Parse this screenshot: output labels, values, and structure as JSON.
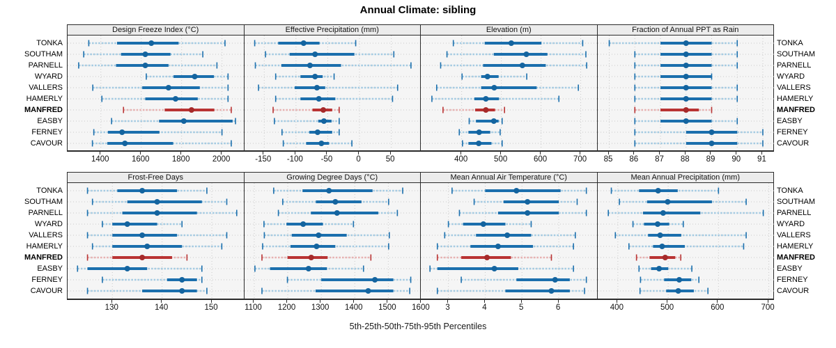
{
  "chart_data": {
    "type": "dot-whisker-trellis",
    "title": "Annual Climate: sibling",
    "caption": "5th-25th-50th-75th-95th Percentiles",
    "percentiles": [
      5,
      25,
      50,
      75,
      95
    ],
    "stations": [
      "TONKA",
      "SOUTHAM",
      "PARNELL",
      "WYARD",
      "VALLERS",
      "HAMERLY",
      "MANFRED",
      "EASBY",
      "FERNEY",
      "CAVOUR"
    ],
    "highlight_station": "MANFRED",
    "colors": {
      "normal": "#1b6fad",
      "normal_light": "#a5cbe2",
      "normal_dot": "#14649f",
      "highlight": "#b93333",
      "highlight_light": "#e7b2b2",
      "highlight_dot": "#a62a2a",
      "panel_bg": "#f5f5f5",
      "strip_bg": "#ececec",
      "gridline": "#c9c9c9",
      "border": "#2b2b2b"
    },
    "layout": {
      "rows": 2,
      "cols": 4,
      "grid": "dotted",
      "legend": "none",
      "labels_both_sides": true
    },
    "panels": [
      {
        "title": "Design Freeze Index (°C)",
        "row": 0,
        "col": 0,
        "ticks": [
          1400,
          1600,
          1800,
          2000
        ],
        "xlim": [
          1235,
          2110
        ],
        "values": {
          "TONKA": [
            1340,
            1480,
            1650,
            1785,
            2015
          ],
          "SOUTHAM": [
            1315,
            1500,
            1620,
            1745,
            1905
          ],
          "PARNELL": [
            1290,
            1475,
            1620,
            1735,
            1975
          ],
          "WYARD": [
            1625,
            1760,
            1865,
            1960,
            2030
          ],
          "VALLERS": [
            1360,
            1605,
            1735,
            1890,
            2030
          ],
          "HAMERLY": [
            1405,
            1620,
            1770,
            1880,
            2030
          ],
          "MANFRED": [
            1512,
            1716,
            1849,
            1962,
            2046
          ],
          "EASBY": [
            1453,
            1688,
            1811,
            2053,
            2067
          ],
          "FERNEY": [
            1365,
            1435,
            1505,
            1690,
            2000
          ],
          "CAVOUR": [
            1358,
            1432,
            1519,
            1758,
            2046
          ]
        }
      },
      {
        "title": "Effective Precipitation (mm)",
        "row": 0,
        "col": 1,
        "ticks": [
          -150,
          -100,
          -50,
          0,
          50
        ],
        "xlim": [
          -181,
          97
        ],
        "values": {
          "TONKA": [
            -165,
            -128,
            -88,
            -63,
            -6
          ],
          "SOUTHAM": [
            -148,
            -110,
            -70,
            -8,
            54
          ],
          "PARNELL": [
            -164,
            -123,
            -78,
            -29,
            81
          ],
          "WYARD": [
            -132,
            -93,
            -70,
            -58,
            -40
          ],
          "VALLERS": [
            -159,
            -102,
            -67,
            -54,
            60
          ],
          "HAMERLY": [
            -132,
            -93,
            -64,
            -38,
            52
          ],
          "MANFRED": [
            -136,
            -74,
            -57,
            -43,
            -32
          ],
          "EASBY": [
            -134,
            -65,
            -56,
            -44,
            -32
          ],
          "FERNEY": [
            -122,
            -79,
            -66,
            -43,
            -32
          ],
          "CAVOUR": [
            -120,
            -84,
            -60,
            -48,
            -12
          ]
        }
      },
      {
        "title": "Elevation (m)",
        "row": 0,
        "col": 2,
        "ticks": [
          400,
          500,
          600,
          700
        ],
        "xlim": [
          297,
          742
        ],
        "values": {
          "TONKA": [
            379,
            458,
            525,
            601,
            705
          ],
          "SOUTHAM": [
            363,
            481,
            563,
            616,
            713
          ],
          "PARNELL": [
            347,
            454,
            553,
            612,
            715
          ],
          "WYARD": [
            401,
            449,
            465,
            493,
            564
          ],
          "VALLERS": [
            337,
            449,
            482,
            589,
            694
          ],
          "HAMERLY": [
            325,
            432,
            461,
            494,
            645
          ],
          "MANFRED": [
            353,
            434,
            461,
            484,
            508
          ],
          "EASBY": [
            419,
            436,
            481,
            493,
            502
          ],
          "FERNEY": [
            394,
            417,
            444,
            472,
            497
          ],
          "CAVOUR": [
            402,
            417,
            443,
            475,
            502
          ]
        }
      },
      {
        "title": "Fraction of Annual PPT as Rain",
        "row": 0,
        "col": 3,
        "ticks": [
          85,
          86,
          87,
          88,
          89,
          90,
          91
        ],
        "xlim": [
          84.55,
          91.45
        ],
        "values": {
          "TONKA": [
            85,
            87,
            88,
            89,
            90
          ],
          "SOUTHAM": [
            86,
            87,
            88,
            89,
            90
          ],
          "PARNELL": [
            86,
            87,
            88,
            89,
            90
          ],
          "WYARD": [
            86,
            87,
            88,
            89,
            89
          ],
          "VALLERS": [
            86,
            87,
            88,
            89,
            90
          ],
          "HAMERLY": [
            86,
            87,
            88,
            89,
            90
          ],
          "MANFRED": [
            86,
            87,
            88,
            88.5,
            89
          ],
          "EASBY": [
            86,
            87,
            88,
            89,
            90
          ],
          "FERNEY": [
            86,
            88,
            89,
            90,
            91
          ],
          "CAVOUR": [
            86,
            88,
            89,
            90,
            91
          ]
        }
      },
      {
        "title": "Frost-Free Days",
        "row": 1,
        "col": 0,
        "ticks": [
          130,
          140,
          150
        ],
        "xlim": [
          121,
          156.5
        ],
        "values": {
          "TONKA": [
            125,
            131,
            136,
            143,
            149
          ],
          "SOUTHAM": [
            126,
            133,
            139,
            148,
            153
          ],
          "PARNELL": [
            125,
            132,
            139,
            147,
            155
          ],
          "WYARD": [
            128,
            130,
            133,
            139,
            144
          ],
          "VALLERS": [
            125,
            130,
            136,
            143,
            153
          ],
          "HAMERLY": [
            126,
            130,
            137,
            144,
            152
          ],
          "MANFRED": [
            125,
            130,
            136,
            142,
            145
          ],
          "EASBY": [
            123,
            125,
            133,
            137,
            148
          ],
          "FERNEY": [
            128,
            141,
            144,
            147,
            148
          ],
          "CAVOUR": [
            125,
            136,
            144,
            147,
            149
          ]
        }
      },
      {
        "title": "Growing Degree Days (°C)",
        "row": 1,
        "col": 1,
        "ticks": [
          1100,
          1200,
          1300,
          1400,
          1500,
          1600
        ],
        "xlim": [
          1071,
          1598
        ],
        "values": {
          "TONKA": [
            1158,
            1244,
            1323,
            1453,
            1543
          ],
          "SOUTHAM": [
            1185,
            1284,
            1342,
            1420,
            1501
          ],
          "PARNELL": [
            1172,
            1269,
            1347,
            1470,
            1527
          ],
          "WYARD": [
            1129,
            1196,
            1246,
            1305,
            1396
          ],
          "VALLERS": [
            1130,
            1212,
            1292,
            1376,
            1503
          ],
          "HAMERLY": [
            1125,
            1208,
            1286,
            1342,
            1501
          ],
          "MANFRED": [
            1123,
            1199,
            1270,
            1319,
            1448
          ],
          "EASBY": [
            1102,
            1147,
            1262,
            1317,
            1426
          ],
          "FERNEY": [
            1199,
            1300,
            1460,
            1515,
            1567
          ],
          "CAVOUR": [
            1123,
            1283,
            1440,
            1515,
            1564
          ]
        }
      },
      {
        "title": "Mean Annual Air Temperature (°C)",
        "row": 1,
        "col": 2,
        "ticks": [
          3,
          4,
          5,
          6
        ],
        "xlim": [
          2.25,
          7.05
        ],
        "values": {
          "TONKA": [
            3.1,
            4.0,
            4.85,
            6.05,
            6.75
          ],
          "SOUTHAM": [
            3.7,
            4.5,
            5.15,
            6.0,
            6.5
          ],
          "PARNELL": [
            3.3,
            4.35,
            5.15,
            6.0,
            6.75
          ],
          "WYARD": [
            3.0,
            3.4,
            3.95,
            4.55,
            5.25
          ],
          "VALLERS": [
            2.9,
            3.75,
            4.6,
            5.25,
            6.45
          ],
          "HAMERLY": [
            2.7,
            3.6,
            4.35,
            5.3,
            6.4
          ],
          "MANFRED": [
            2.7,
            3.35,
            4.05,
            4.7,
            5.8
          ],
          "EASBY": [
            2.5,
            2.7,
            4.25,
            4.9,
            6.4
          ],
          "FERNEY": [
            3.35,
            4.85,
            5.9,
            6.3,
            6.75
          ],
          "CAVOUR": [
            2.7,
            4.55,
            5.8,
            6.3,
            6.7
          ]
        }
      },
      {
        "title": "Mean Annual Precipitation (mm)",
        "row": 1,
        "col": 3,
        "ticks": [
          400,
          500,
          600,
          700
        ],
        "xlim": [
          360,
          711
        ],
        "values": {
          "TONKA": [
            387,
            442,
            480,
            519,
            600
          ],
          "SOUTHAM": [
            403,
            458,
            499,
            587,
            655
          ],
          "PARNELL": [
            381,
            450,
            490,
            564,
            689
          ],
          "WYARD": [
            430,
            452,
            479,
            502,
            530
          ],
          "VALLERS": [
            395,
            460,
            484,
            526,
            655
          ],
          "HAMERLY": [
            422,
            470,
            488,
            533,
            650
          ],
          "MANFRED": [
            437,
            463,
            494,
            514,
            525
          ],
          "EASBY": [
            442,
            466,
            482,
            500,
            547
          ],
          "FERNEY": [
            445,
            492,
            522,
            546,
            561
          ],
          "CAVOUR": [
            444,
            496,
            520,
            551,
            579
          ]
        }
      }
    ]
  }
}
